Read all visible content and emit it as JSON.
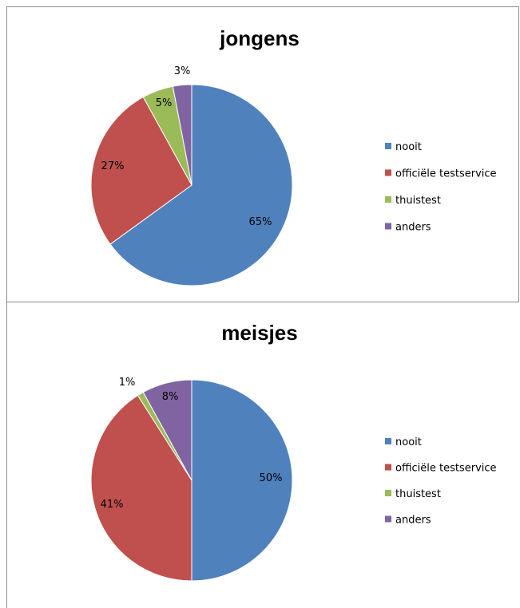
{
  "chart_data": [
    {
      "type": "pie",
      "title": "jongens",
      "categories": [
        "nooit",
        "officiële testservice",
        "thuistest",
        "anders"
      ],
      "values": [
        65,
        27,
        5,
        3
      ],
      "labels": [
        "65%",
        "27%",
        "5%",
        "3%"
      ],
      "colors": [
        "#4f81bd",
        "#c0504d",
        "#9bbb59",
        "#8064a2"
      ],
      "legend_position": "right"
    },
    {
      "type": "pie",
      "title": "meisjes",
      "categories": [
        "nooit",
        "officiële testservice",
        "thuistest",
        "anders"
      ],
      "values": [
        50,
        41,
        1,
        8
      ],
      "labels": [
        "50%",
        "41%",
        "1%",
        "8%"
      ],
      "colors": [
        "#4f81bd",
        "#c0504d",
        "#9bbb59",
        "#8064a2"
      ],
      "legend_position": "right"
    }
  ]
}
